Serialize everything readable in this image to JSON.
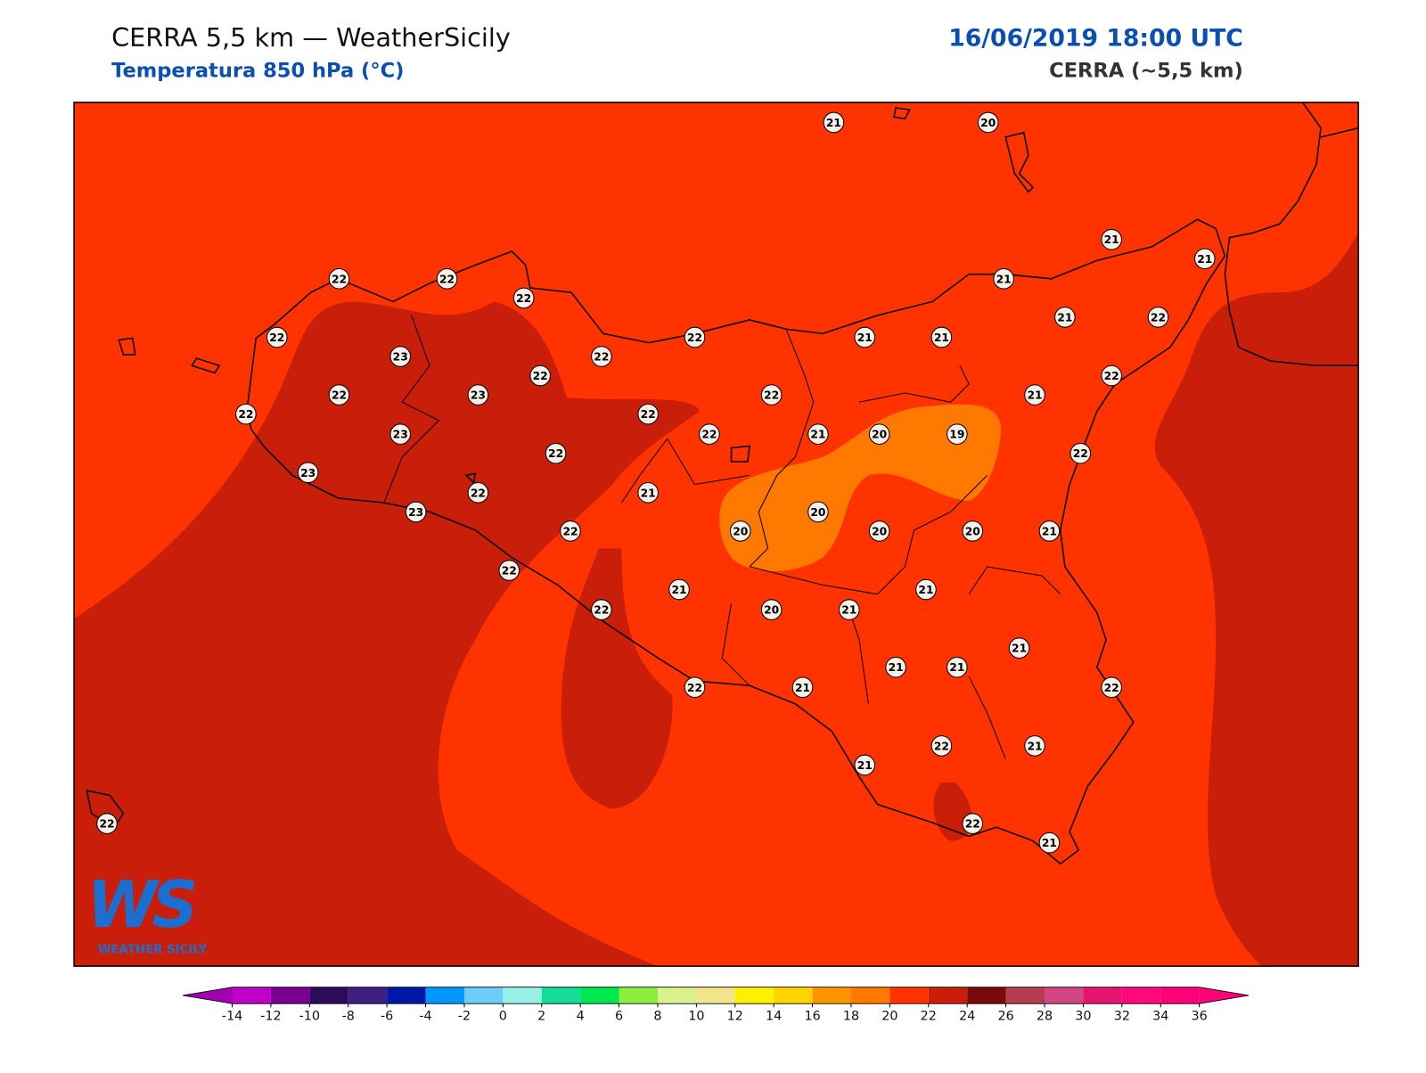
{
  "header": {
    "title": "CERRA 5,5 km — WeatherSicily",
    "subtitle": "Temperatura 850 hPa (°C)",
    "date": "16/06/2019 18:00 UTC",
    "model": "CERRA (~5,5 km)"
  },
  "stations": [
    21,
    20,
    21,
    21,
    22,
    22,
    22,
    21,
    22,
    22,
    21,
    21,
    21,
    22,
    23,
    22,
    22,
    22,
    22,
    23,
    22,
    21,
    22,
    22,
    23,
    22,
    21,
    20,
    19,
    22,
    22,
    23,
    22,
    21,
    23,
    22,
    20,
    20,
    20,
    20,
    21,
    22,
    21,
    21,
    22,
    20,
    21,
    21,
    21,
    21,
    22,
    21,
    22,
    22,
    21,
    21,
    22,
    22,
    21
  ],
  "logo": {
    "mark": "WS",
    "name": "WEATHER SICILY"
  },
  "colorbar": {
    "ticks": [
      -14,
      -12,
      -10,
      -8,
      -6,
      -4,
      -2,
      0,
      2,
      4,
      6,
      8,
      10,
      12,
      14,
      16,
      18,
      20,
      22,
      24,
      26,
      28,
      30,
      32,
      34,
      36
    ],
    "colors": [
      "#c000c8",
      "#7b0090",
      "#2e0a5a",
      "#3c2080",
      "#0018a8",
      "#0096ff",
      "#6ecdf7",
      "#96f0e6",
      "#14dc96",
      "#00e650",
      "#8ced3c",
      "#dcf08c",
      "#f0e68c",
      "#fff000",
      "#ffd200",
      "#ff9600",
      "#ff7800",
      "#ff3200",
      "#c81e0a",
      "#780a0a",
      "#b43c50",
      "#d24682",
      "#e6146e",
      "#ff0a78",
      "#ff0078"
    ],
    "under": "#a000b0",
    "over": "#ff0078"
  }
}
